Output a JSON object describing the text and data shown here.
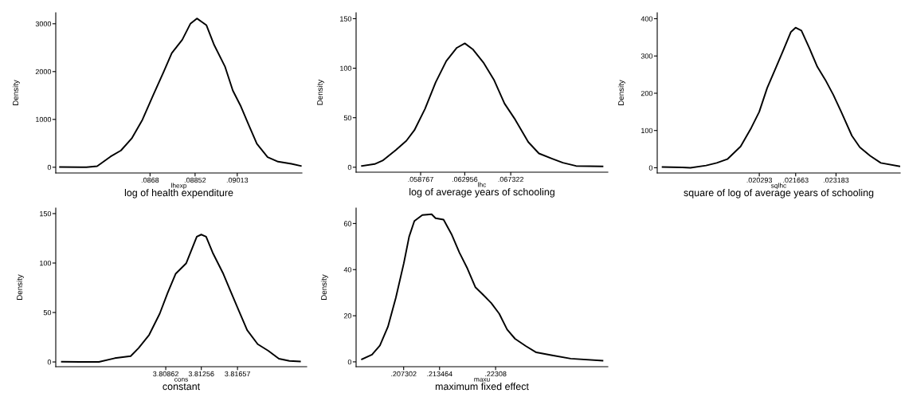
{
  "chart_data": [
    {
      "type": "line",
      "title": "log of health expenditure",
      "xlabel": "lhexp",
      "ylabel": "Density",
      "color": "#000000",
      "x": [
        0.08336,
        0.08417,
        0.08437,
        0.08478,
        0.08529,
        0.08569,
        0.0861,
        0.08651,
        0.08691,
        0.08732,
        0.08763,
        0.08803,
        0.08834,
        0.08859,
        0.08895,
        0.08925,
        0.08966,
        0.08996,
        0.09027,
        0.09057,
        0.09088,
        0.09129,
        0.09169,
        0.0922,
        0.09256
      ],
      "values": [
        6,
        0,
        0,
        22,
        223,
        351,
        602,
        993,
        1494,
        1996,
        2386,
        2665,
        2999,
        3111,
        2972,
        2554,
        2108,
        1606,
        1271,
        881,
        491,
        212,
        117,
        72,
        28
      ],
      "xlim": [
        0.0832,
        0.0926
      ],
      "ylim": [
        -120,
        3230
      ],
      "xticks": [
        {
          "value": 0.0868,
          "label": ".0868"
        },
        {
          "value": 0.08852,
          "label": ".08852"
        },
        {
          "value": 0.09013,
          "label": ".09013"
        }
      ],
      "yticks": [
        0,
        1000,
        2000,
        3000
      ]
    },
    {
      "type": "line",
      "title": "log of average years of schooling",
      "xlabel": "lhc",
      "ylabel": "Density",
      "color": "#000000",
      "x": [
        0.05319,
        0.0544,
        0.05516,
        0.05641,
        0.05742,
        0.05818,
        0.05918,
        0.06019,
        0.0612,
        0.0622,
        0.06296,
        0.06371,
        0.06472,
        0.06572,
        0.06673,
        0.06774,
        0.06899,
        0.07,
        0.07126,
        0.07227,
        0.07352,
        0.07604
      ],
      "values": [
        1.3,
        3.2,
        6.7,
        17.4,
        26.8,
        37.5,
        58.9,
        85.7,
        107.2,
        120.6,
        125.1,
        119.2,
        105.8,
        88.4,
        64.3,
        48.2,
        25.4,
        13.9,
        8.6,
        4.6,
        1.3,
        0.8
      ],
      "xlim": [
        0.05264,
        0.07654
      ],
      "ylim": [
        -5,
        156
      ],
      "xticks": [
        {
          "value": 0.058767,
          "label": ".058767"
        },
        {
          "value": 0.062956,
          "label": ".062956"
        },
        {
          "value": 0.067322,
          "label": ".067322"
        }
      ],
      "yticks": [
        0,
        50,
        100,
        150
      ]
    },
    {
      "type": "line",
      "title": "square of log of average years of schooling",
      "xlabel": "sqlhc",
      "ylabel": "Density",
      "color": "#000000",
      "x": [
        0.01665,
        0.0174,
        0.0177,
        0.01829,
        0.01869,
        0.01909,
        0.01959,
        0.01999,
        0.02029,
        0.02059,
        0.02089,
        0.02119,
        0.02148,
        0.02166,
        0.02188,
        0.02218,
        0.02248,
        0.02278,
        0.02308,
        0.02338,
        0.02378,
        0.02408,
        0.02447,
        0.02487,
        0.02557
      ],
      "values": [
        2,
        1,
        0,
        6,
        13,
        23,
        57,
        107,
        150,
        214,
        264,
        314,
        364,
        376,
        368,
        321,
        271,
        236,
        196,
        150,
        86,
        55,
        32,
        13,
        4
      ],
      "xlim": [
        0.01645,
        0.0256
      ],
      "ylim": [
        -14,
        416
      ],
      "xticks": [
        {
          "value": 0.020293,
          "label": ".020293"
        },
        {
          "value": 0.021663,
          "label": ".021663"
        },
        {
          "value": 0.023183,
          "label": ".023183"
        }
      ],
      "yticks": [
        0,
        100,
        200,
        300,
        400
      ]
    },
    {
      "type": "line",
      "title": "constant",
      "xlabel": "cons",
      "ylabel": "Density",
      "color": "#000000",
      "x": [
        3.7971,
        3.79915,
        3.80121,
        3.80297,
        3.80473,
        3.80561,
        3.80678,
        3.80795,
        3.80883,
        3.80971,
        3.81089,
        3.81206,
        3.81256,
        3.81309,
        3.81382,
        3.815,
        3.81588,
        3.81676,
        3.81764,
        3.81881,
        3.81998,
        3.82116,
        3.82233,
        3.8235
      ],
      "values": [
        0.3,
        0,
        0,
        3.8,
        5.9,
        14,
        27.4,
        48.8,
        69.8,
        89.1,
        99.8,
        126.6,
        128.8,
        126.6,
        110.5,
        89.1,
        69.8,
        51,
        32.2,
        18,
        11.3,
        3.2,
        1.1,
        0.5
      ],
      "xlim": [
        3.79643,
        3.82424
      ],
      "ylim": [
        -4.8,
        155.6
      ],
      "xticks": [
        {
          "value": 3.80862,
          "label": "3.80862"
        },
        {
          "value": 3.81256,
          "label": "3.81256"
        },
        {
          "value": 3.81657,
          "label": "3.81657"
        }
      ],
      "yticks": [
        0,
        50,
        100,
        150
      ]
    },
    {
      "type": "line",
      "title": "maximum fixed effect",
      "xlabel": "maxu",
      "ylabel": "Density",
      "color": "#000000",
      "x": [
        0.20014,
        0.20187,
        0.20323,
        0.2046,
        0.20596,
        0.20733,
        0.20824,
        0.20914,
        0.21051,
        0.2121,
        0.21278,
        0.21415,
        0.21551,
        0.21687,
        0.21824,
        0.2196,
        0.22097,
        0.22233,
        0.2237,
        0.22506,
        0.22642,
        0.22824,
        0.23006,
        0.23279,
        0.23597,
        0.24143
      ],
      "values": [
        1.1,
        3.1,
        7.1,
        15.2,
        27.8,
        42.8,
        54.3,
        61.1,
        63.7,
        64,
        62.3,
        61.7,
        55.4,
        47.4,
        40.5,
        32.4,
        29,
        25.5,
        20.9,
        14,
        10,
        6.9,
        4.1,
        2.8,
        1.4,
        0.5
      ],
      "xlim": [
        0.19914,
        0.24234
      ],
      "ylim": [
        -2.1,
        66.7
      ],
      "xticks": [
        {
          "value": 0.207302,
          "label": ".207302"
        },
        {
          "value": 0.213464,
          "label": ".213464"
        },
        {
          "value": 0.22308,
          "label": ".22308"
        }
      ],
      "yticks": [
        0,
        20,
        40,
        60
      ]
    }
  ]
}
